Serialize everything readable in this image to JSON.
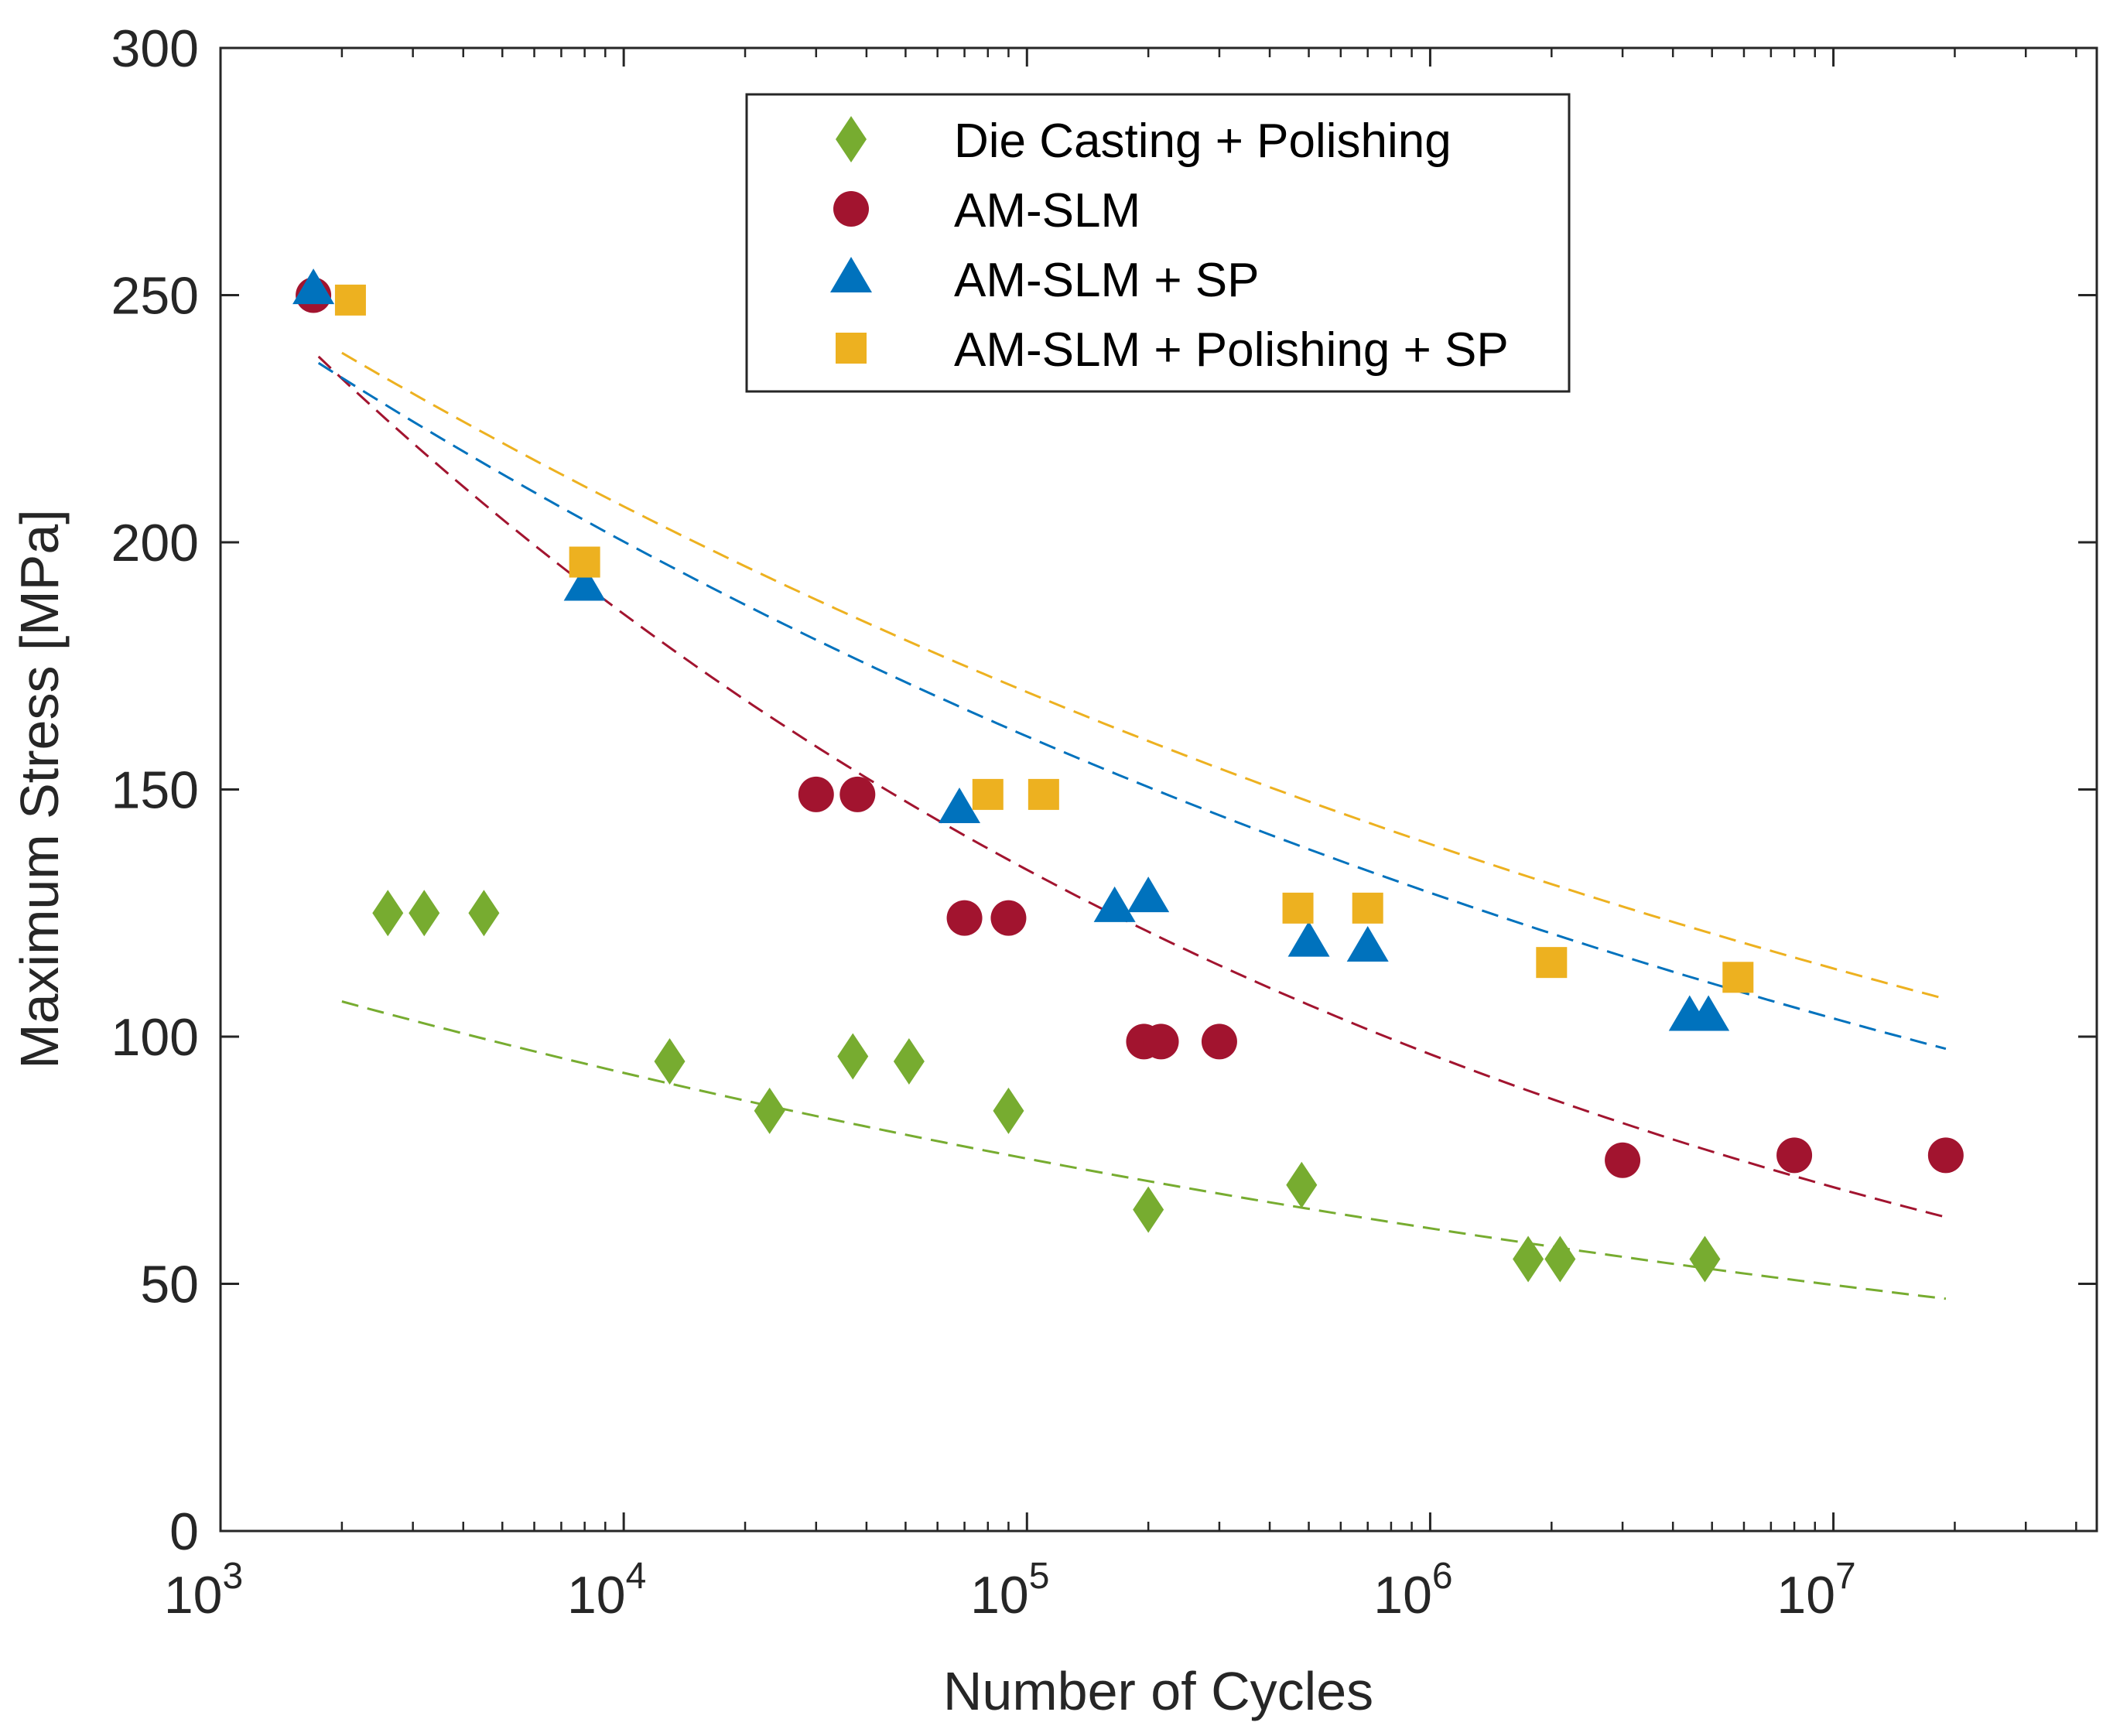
{
  "chart_data": {
    "type": "scatter",
    "xlabel": "Number of Cycles",
    "ylabel": "Maximum Stress [MPa]",
    "xscale": "log",
    "xlim": [
      1000,
      45000000
    ],
    "ylim": [
      0,
      300
    ],
    "x_ticks": [
      {
        "value": 1000,
        "base": "10",
        "exp": "3"
      },
      {
        "value": 10000,
        "base": "10",
        "exp": "4"
      },
      {
        "value": 100000,
        "base": "10",
        "exp": "5"
      },
      {
        "value": 1000000,
        "base": "10",
        "exp": "6"
      },
      {
        "value": 10000000,
        "base": "10",
        "exp": "7"
      }
    ],
    "y_ticks": [
      0,
      50,
      100,
      150,
      200,
      250,
      300
    ],
    "grid": false,
    "legend_position": "top-center",
    "series": [
      {
        "name": "Die Casting + Polishing",
        "marker": "diamond",
        "color": "#77AC30",
        "points": [
          [
            2600,
            125
          ],
          [
            3200,
            125
          ],
          [
            4500,
            125
          ],
          [
            13000,
            95
          ],
          [
            23000,
            85
          ],
          [
            37000,
            96
          ],
          [
            51000,
            95
          ],
          [
            90000,
            85
          ],
          [
            200000,
            65
          ],
          [
            480000,
            70
          ],
          [
            1750000,
            55
          ],
          [
            2100000,
            55
          ],
          [
            4800000,
            55
          ]
        ],
        "fit": {
          "a": 212.3,
          "b": -0.09,
          "x_range": [
            2000,
            19000000
          ]
        }
      },
      {
        "name": "AM-SLM",
        "marker": "circle",
        "color": "#A2142F",
        "points": [
          [
            1700,
            250
          ],
          [
            30000,
            149
          ],
          [
            38000,
            149
          ],
          [
            70000,
            124
          ],
          [
            90000,
            124
          ],
          [
            195000,
            99
          ],
          [
            215000,
            99
          ],
          [
            300000,
            99
          ],
          [
            3000000,
            75
          ],
          [
            8000000,
            76
          ],
          [
            19000000,
            76
          ]
        ],
        "fit": {
          "a": 686,
          "b": -0.142,
          "x_range": [
            1750,
            19000000
          ]
        }
      },
      {
        "name": "AM-SLM + SP",
        "marker": "triangle",
        "color": "#0072BD",
        "points": [
          [
            1700,
            251
          ],
          [
            8000,
            191
          ],
          [
            68000,
            146
          ],
          [
            165000,
            126
          ],
          [
            200000,
            128
          ],
          [
            500000,
            119
          ],
          [
            700000,
            118
          ],
          [
            4400000,
            104
          ],
          [
            4900000,
            104
          ]
        ],
        "fit": {
          "a": 481,
          "b": -0.0952,
          "x_range": [
            1750,
            19000000
          ]
        }
      },
      {
        "name": "AM-SLM + Polishing + SP",
        "marker": "square",
        "color": "#EDB120",
        "points": [
          [
            2100,
            249
          ],
          [
            8000,
            196
          ],
          [
            80000,
            149
          ],
          [
            110000,
            149
          ],
          [
            470000,
            126
          ],
          [
            700000,
            126
          ],
          [
            2000000,
            115
          ],
          [
            5800000,
            112
          ]
        ],
        "fit": {
          "a": 461,
          "b": -0.0868,
          "x_range": [
            2000,
            19000000
          ]
        }
      }
    ]
  }
}
